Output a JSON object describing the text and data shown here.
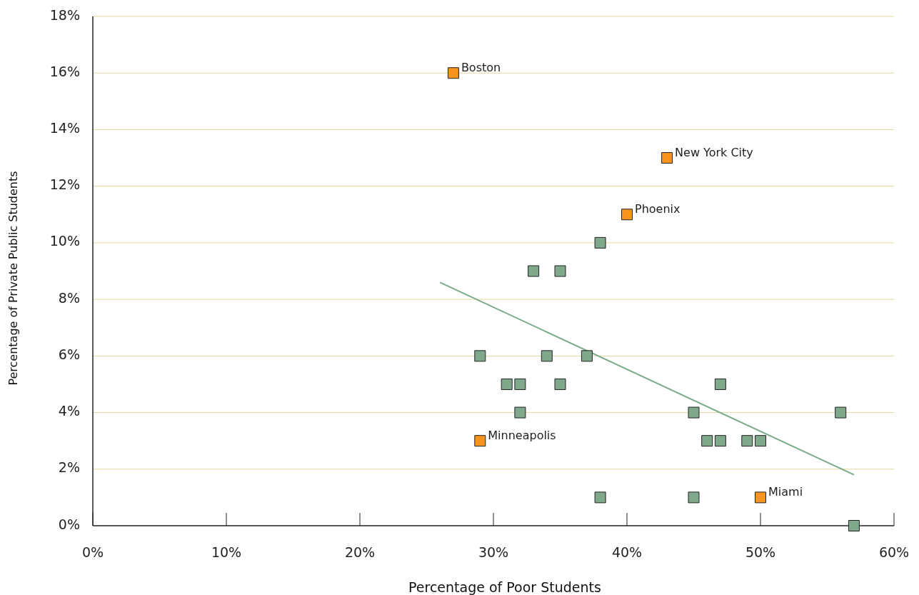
{
  "chart_data": {
    "type": "scatter",
    "xlabel": "Percentage of Poor Students",
    "ylabel": "Percentage of Private Public Students",
    "xlim": [
      0,
      60
    ],
    "ylim": [
      0,
      18
    ],
    "xticks": [
      {
        "value": 0,
        "label": "0%"
      },
      {
        "value": 10,
        "label": "10%"
      },
      {
        "value": 20,
        "label": "20%"
      },
      {
        "value": 30,
        "label": "30%"
      },
      {
        "value": 40,
        "label": "40%"
      },
      {
        "value": 50,
        "label": "50%"
      },
      {
        "value": 60,
        "label": "60%"
      }
    ],
    "yticks": [
      {
        "value": 0,
        "label": "0%"
      },
      {
        "value": 2,
        "label": "2%"
      },
      {
        "value": 4,
        "label": "4%"
      },
      {
        "value": 6,
        "label": "6%"
      },
      {
        "value": 8,
        "label": "8%"
      },
      {
        "value": 10,
        "label": "10%"
      },
      {
        "value": 12,
        "label": "12%"
      },
      {
        "value": 14,
        "label": "14%"
      },
      {
        "value": 16,
        "label": "16%"
      },
      {
        "value": 18,
        "label": "18%"
      }
    ],
    "grid": "y",
    "marker": "square",
    "series": [
      {
        "type": "line",
        "marker": "none",
        "color": "#7aab88",
        "x": [
          26,
          57
        ],
        "values": [
          8.6,
          1.8
        ]
      },
      {
        "color": "#7fa98a",
        "x": [
          29,
          31,
          32,
          32,
          33,
          34,
          35,
          35,
          37,
          38,
          38,
          45,
          45,
          46,
          47,
          47,
          49,
          50,
          56,
          57
        ],
        "values": [
          6,
          5,
          5,
          4,
          9,
          6,
          9,
          5,
          6,
          10,
          1,
          4,
          1,
          3,
          3,
          5,
          3,
          3,
          4,
          0
        ]
      },
      {
        "color": "#f7941d",
        "x": [
          27,
          43,
          40,
          29,
          50
        ],
        "values": [
          16,
          13,
          11,
          3,
          1
        ]
      }
    ],
    "annotations": [
      {
        "text": "Boston",
        "x": 27,
        "y": 16
      },
      {
        "text": "New York City",
        "x": 43,
        "y": 13
      },
      {
        "text": "Phoenix",
        "x": 40,
        "y": 11
      },
      {
        "text": "Minneapolis",
        "x": 29,
        "y": 3
      },
      {
        "text": "Miami",
        "x": 50,
        "y": 1
      }
    ]
  }
}
